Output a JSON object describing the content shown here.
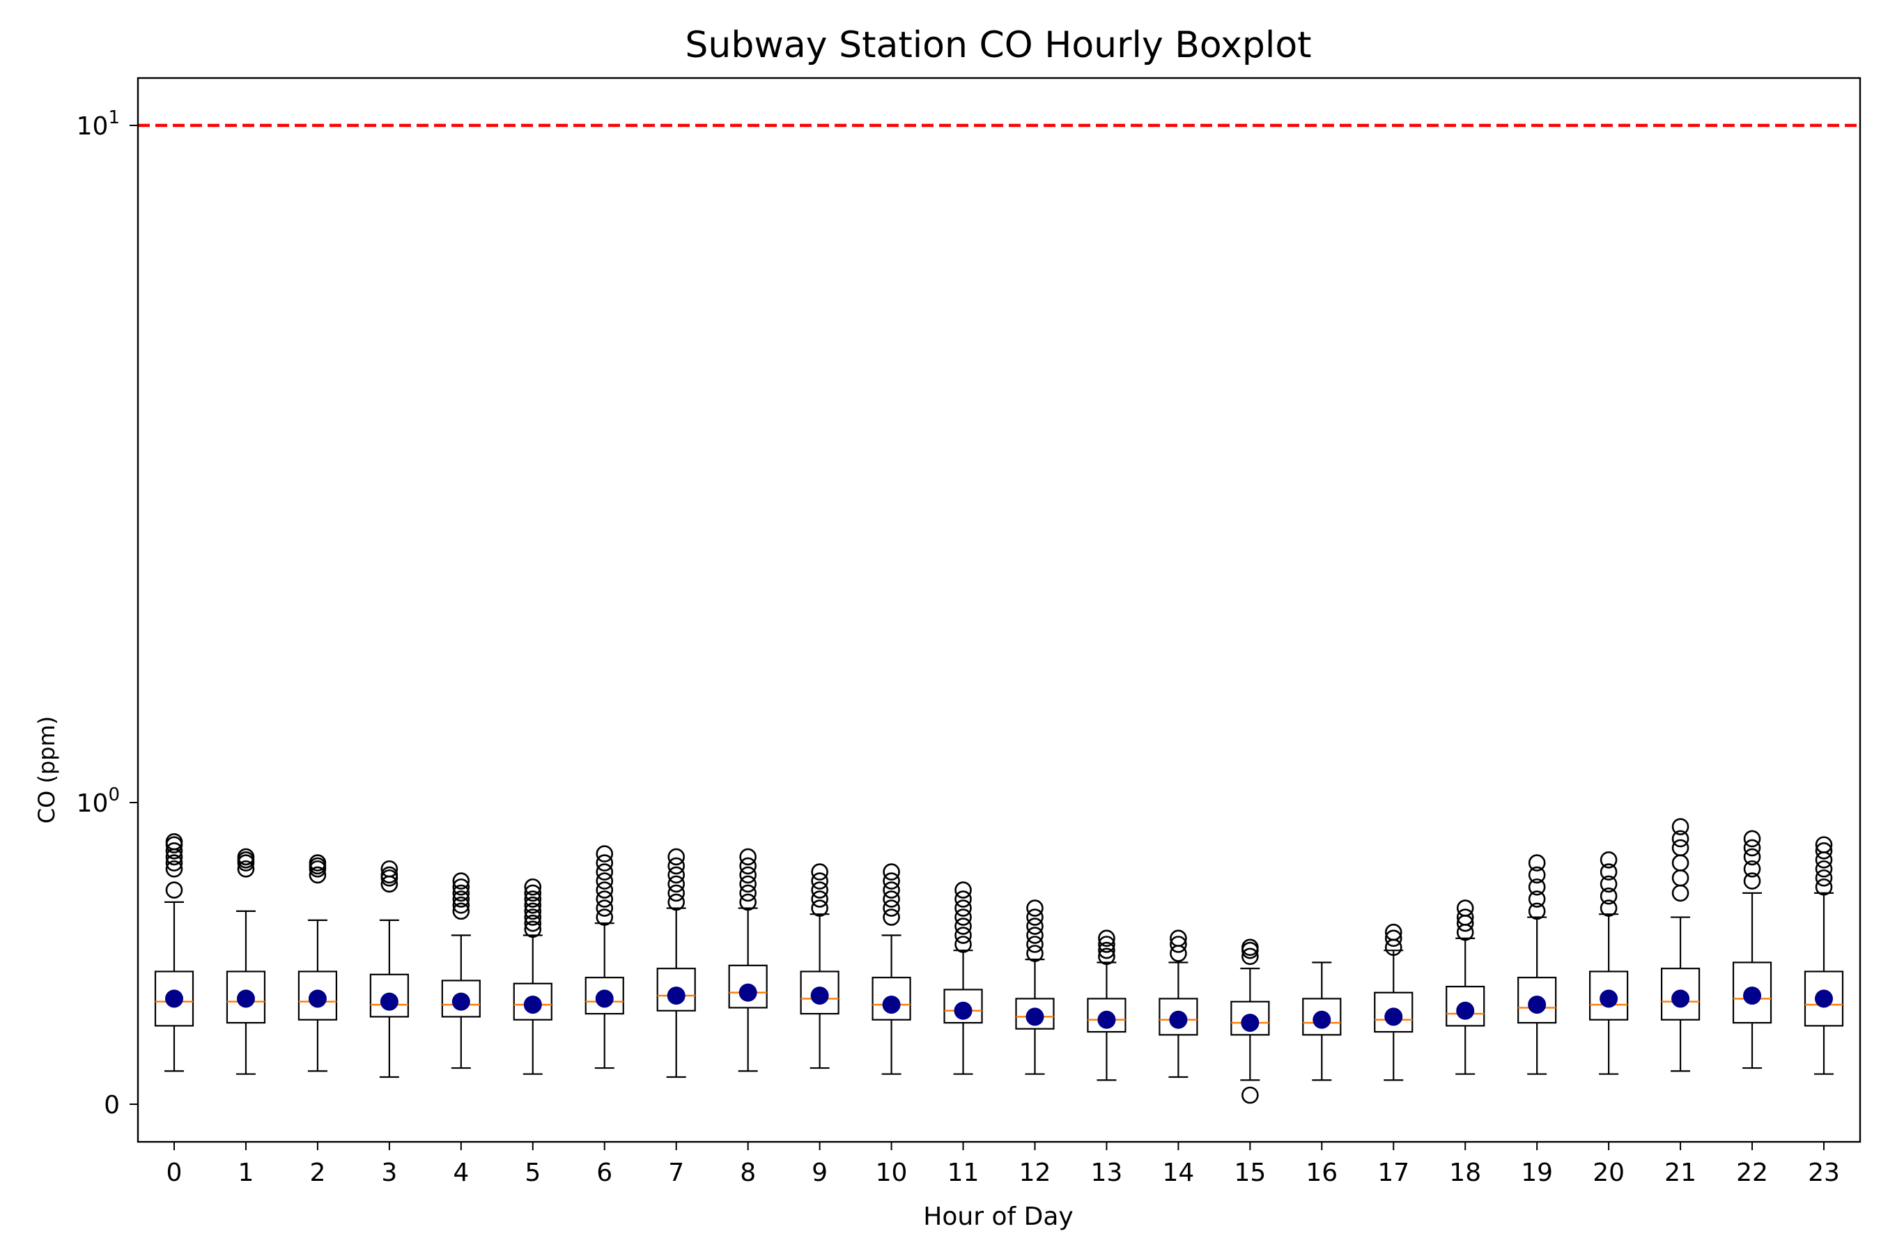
{
  "chart_data": {
    "type": "boxplot",
    "title": "Subway Station CO Hourly Boxplot",
    "xlabel": "Hour of Day",
    "ylabel": "CO (ppm)",
    "yscale": "symlog",
    "ylim": [
      -0.06,
      12
    ],
    "ytick_labels": {
      "zero": "0",
      "one_base": "10",
      "one_exp": "0",
      "ten_base": "10",
      "ten_exp": "1"
    },
    "categories": [
      "0",
      "1",
      "2",
      "3",
      "4",
      "5",
      "6",
      "7",
      "8",
      "9",
      "10",
      "11",
      "12",
      "13",
      "14",
      "15",
      "16",
      "17",
      "18",
      "19",
      "20",
      "21",
      "22",
      "23"
    ],
    "reference_line": {
      "value": 10,
      "color": "#ff0000",
      "style": "dashed"
    },
    "colors": {
      "median": "#ff7f0e",
      "mean": "#00008b",
      "box": "#000000"
    },
    "boxes": [
      {
        "whislo": 0.11,
        "q1": 0.26,
        "med": 0.34,
        "q3": 0.44,
        "whishi": 0.67,
        "mean": 0.35,
        "fliers": [
          0.71,
          0.78,
          0.8,
          0.82,
          0.84,
          0.86,
          0.87
        ]
      },
      {
        "whislo": 0.1,
        "q1": 0.27,
        "med": 0.34,
        "q3": 0.44,
        "whishi": 0.64,
        "mean": 0.35,
        "fliers": [
          0.78,
          0.8,
          0.81,
          0.82
        ]
      },
      {
        "whislo": 0.11,
        "q1": 0.28,
        "med": 0.34,
        "q3": 0.44,
        "whishi": 0.61,
        "mean": 0.35,
        "fliers": [
          0.76,
          0.78,
          0.79,
          0.8
        ]
      },
      {
        "whislo": 0.09,
        "q1": 0.29,
        "med": 0.33,
        "q3": 0.43,
        "whishi": 0.61,
        "mean": 0.34,
        "fliers": [
          0.73,
          0.75,
          0.76,
          0.78
        ]
      },
      {
        "whislo": 0.12,
        "q1": 0.29,
        "med": 0.33,
        "q3": 0.41,
        "whishi": 0.56,
        "mean": 0.34,
        "fliers": [
          0.64,
          0.66,
          0.68,
          0.7,
          0.72,
          0.74
        ]
      },
      {
        "whislo": 0.1,
        "q1": 0.28,
        "med": 0.33,
        "q3": 0.4,
        "whishi": 0.56,
        "mean": 0.33,
        "fliers": [
          0.58,
          0.6,
          0.62,
          0.64,
          0.66,
          0.68,
          0.7,
          0.72
        ]
      },
      {
        "whislo": 0.12,
        "q1": 0.3,
        "med": 0.34,
        "q3": 0.42,
        "whishi": 0.6,
        "mean": 0.35,
        "fliers": [
          0.62,
          0.65,
          0.68,
          0.71,
          0.74,
          0.77,
          0.8,
          0.83
        ]
      },
      {
        "whislo": 0.09,
        "q1": 0.31,
        "med": 0.36,
        "q3": 0.45,
        "whishi": 0.65,
        "mean": 0.36,
        "fliers": [
          0.67,
          0.7,
          0.73,
          0.76,
          0.79,
          0.82
        ]
      },
      {
        "whislo": 0.11,
        "q1": 0.32,
        "med": 0.37,
        "q3": 0.46,
        "whishi": 0.65,
        "mean": 0.37,
        "fliers": [
          0.67,
          0.7,
          0.73,
          0.76,
          0.79,
          0.82
        ]
      },
      {
        "whislo": 0.12,
        "q1": 0.3,
        "med": 0.35,
        "q3": 0.44,
        "whishi": 0.63,
        "mean": 0.36,
        "fliers": [
          0.65,
          0.68,
          0.71,
          0.74,
          0.77
        ]
      },
      {
        "whislo": 0.1,
        "q1": 0.28,
        "med": 0.33,
        "q3": 0.42,
        "whishi": 0.56,
        "mean": 0.33,
        "fliers": [
          0.62,
          0.65,
          0.68,
          0.71,
          0.74,
          0.77
        ]
      },
      {
        "whislo": 0.1,
        "q1": 0.27,
        "med": 0.31,
        "q3": 0.38,
        "whishi": 0.51,
        "mean": 0.31,
        "fliers": [
          0.53,
          0.56,
          0.59,
          0.62,
          0.65,
          0.68,
          0.71
        ]
      },
      {
        "whislo": 0.1,
        "q1": 0.25,
        "med": 0.29,
        "q3": 0.35,
        "whishi": 0.48,
        "mean": 0.29,
        "fliers": [
          0.5,
          0.53,
          0.56,
          0.59,
          0.62,
          0.65
        ]
      },
      {
        "whislo": 0.08,
        "q1": 0.24,
        "med": 0.28,
        "q3": 0.35,
        "whishi": 0.47,
        "mean": 0.28,
        "fliers": [
          0.49,
          0.51,
          0.53,
          0.55
        ]
      },
      {
        "whislo": 0.09,
        "q1": 0.23,
        "med": 0.28,
        "q3": 0.35,
        "whishi": 0.47,
        "mean": 0.28,
        "fliers": [
          0.5,
          0.53,
          0.55
        ]
      },
      {
        "whislo": 0.08,
        "q1": 0.23,
        "med": 0.27,
        "q3": 0.34,
        "whishi": 0.45,
        "mean": 0.27,
        "fliers": [
          0.03,
          0.49,
          0.51,
          0.52
        ]
      },
      {
        "whislo": 0.08,
        "q1": 0.23,
        "med": 0.27,
        "q3": 0.35,
        "whishi": 0.47,
        "mean": 0.28,
        "fliers": []
      },
      {
        "whislo": 0.08,
        "q1": 0.24,
        "med": 0.28,
        "q3": 0.37,
        "whishi": 0.51,
        "mean": 0.29,
        "fliers": [
          0.52,
          0.55,
          0.57
        ]
      },
      {
        "whislo": 0.1,
        "q1": 0.26,
        "med": 0.3,
        "q3": 0.39,
        "whishi": 0.55,
        "mean": 0.31,
        "fliers": [
          0.57,
          0.6,
          0.62,
          0.65
        ]
      },
      {
        "whislo": 0.1,
        "q1": 0.27,
        "med": 0.32,
        "q3": 0.42,
        "whishi": 0.62,
        "mean": 0.33,
        "fliers": [
          0.64,
          0.68,
          0.72,
          0.76,
          0.8
        ]
      },
      {
        "whislo": 0.1,
        "q1": 0.28,
        "med": 0.33,
        "q3": 0.44,
        "whishi": 0.63,
        "mean": 0.35,
        "fliers": [
          0.65,
          0.69,
          0.73,
          0.77,
          0.81
        ]
      },
      {
        "whislo": 0.11,
        "q1": 0.28,
        "med": 0.34,
        "q3": 0.45,
        "whishi": 0.62,
        "mean": 0.35,
        "fliers": [
          0.7,
          0.75,
          0.8,
          0.85,
          0.88,
          0.92
        ]
      },
      {
        "whislo": 0.12,
        "q1": 0.27,
        "med": 0.35,
        "q3": 0.47,
        "whishi": 0.7,
        "mean": 0.36,
        "fliers": [
          0.74,
          0.78,
          0.82,
          0.85,
          0.88
        ]
      },
      {
        "whislo": 0.1,
        "q1": 0.26,
        "med": 0.33,
        "q3": 0.44,
        "whishi": 0.7,
        "mean": 0.35,
        "fliers": [
          0.72,
          0.75,
          0.78,
          0.81,
          0.84,
          0.86
        ]
      }
    ]
  }
}
